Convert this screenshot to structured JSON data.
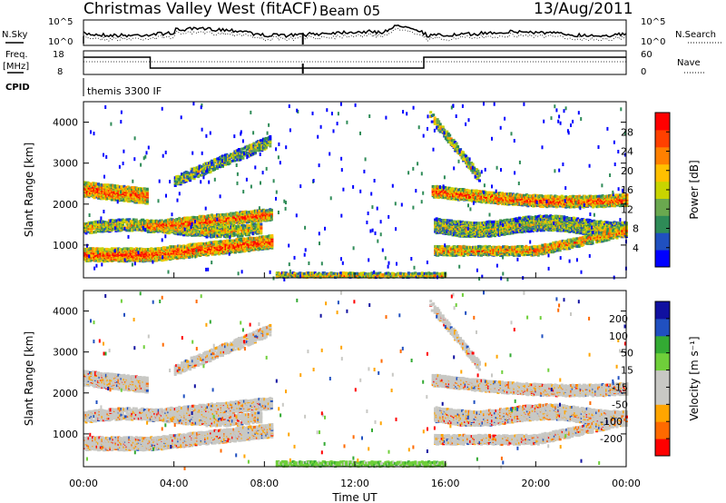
{
  "header": {
    "station": "Christmas Valley West (fitACF)",
    "beam": "Beam 05",
    "date": "13/Aug/2011"
  },
  "strip": {
    "nsky_label": "N.Sky",
    "nsky_ticks": [
      "10^5",
      "10^0"
    ],
    "nsearch_label": "N.Search",
    "nsearch_ticks": [
      "10^5",
      "10^0"
    ],
    "freq_label": "Freq.",
    "freq_unit": "[MHz]",
    "freq_ticks": [
      "18",
      "8"
    ],
    "nave_label": "Nave",
    "nave_ticks": [
      "60",
      "0"
    ],
    "cpid_label": "CPID",
    "cpid_text": "themis 3300 IF"
  },
  "colors": {
    "power": [
      "#0000ff",
      "#2050c0",
      "#2e8b57",
      "#6aa84f",
      "#c8d400",
      "#ffc000",
      "#ff8000",
      "#ff4000",
      "#ff0000"
    ],
    "velocity": [
      "#ff0000",
      "#ff6a00",
      "#ffa500",
      "#c8c8c4",
      "#c8c8c4",
      "#6fcf3a",
      "#33aa33",
      "#2050c0",
      "#1010a0"
    ]
  },
  "chart_data": [
    {
      "type": "heatmap",
      "name": "power",
      "ylabel": "Slant Range [km]",
      "ylim": [
        200,
        4500
      ],
      "yticks": [
        "1000",
        "2000",
        "3000",
        "4000"
      ],
      "xlim_hours": [
        0,
        24
      ],
      "colorbar_label": "Power [dB]",
      "colorbar_ticks": [
        "4",
        "8",
        "12",
        "16",
        "20",
        "24",
        "28"
      ]
    },
    {
      "type": "heatmap",
      "name": "velocity",
      "ylabel": "Slant Range [km]",
      "ylim": [
        200,
        4500
      ],
      "yticks": [
        "1000",
        "2000",
        "3000",
        "4000"
      ],
      "xlim_hours": [
        0,
        24
      ],
      "xlabel": "Time UT",
      "xticks": [
        "00:00",
        "04:00",
        "08:00",
        "12:00",
        "16:00",
        "20:00",
        "00:00"
      ],
      "colorbar_label": "Velocity [m s⁻¹]",
      "colorbar_ticks": [
        "-200",
        "-100",
        "-50",
        "-15",
        "15",
        "50",
        "100",
        "200"
      ]
    }
  ]
}
